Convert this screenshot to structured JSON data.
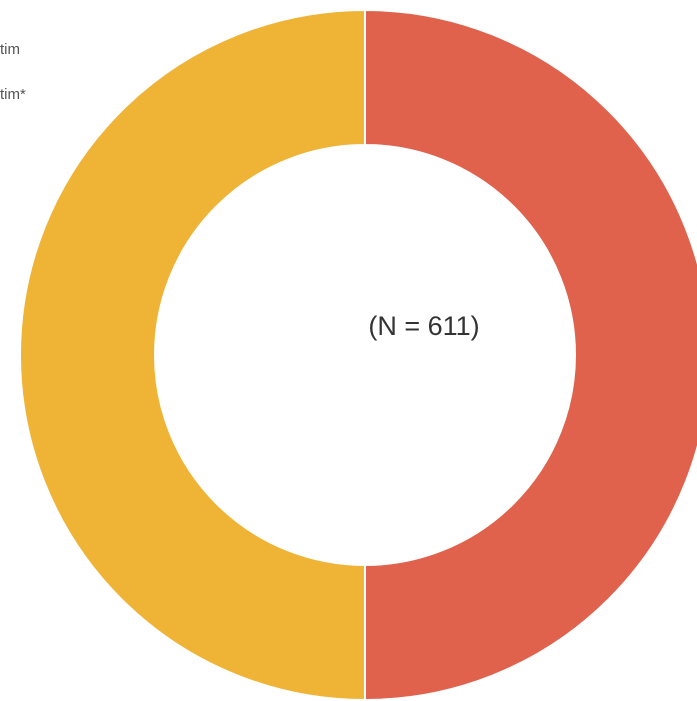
{
  "chart_data": {
    "type": "donut",
    "annotation": "(N = 611)",
    "series": [
      {
        "name": "tim",
        "color": "#e0614c",
        "values": [
          50
        ]
      },
      {
        "name": "tim*",
        "color": "#efb336",
        "values": [
          50
        ]
      }
    ]
  }
}
